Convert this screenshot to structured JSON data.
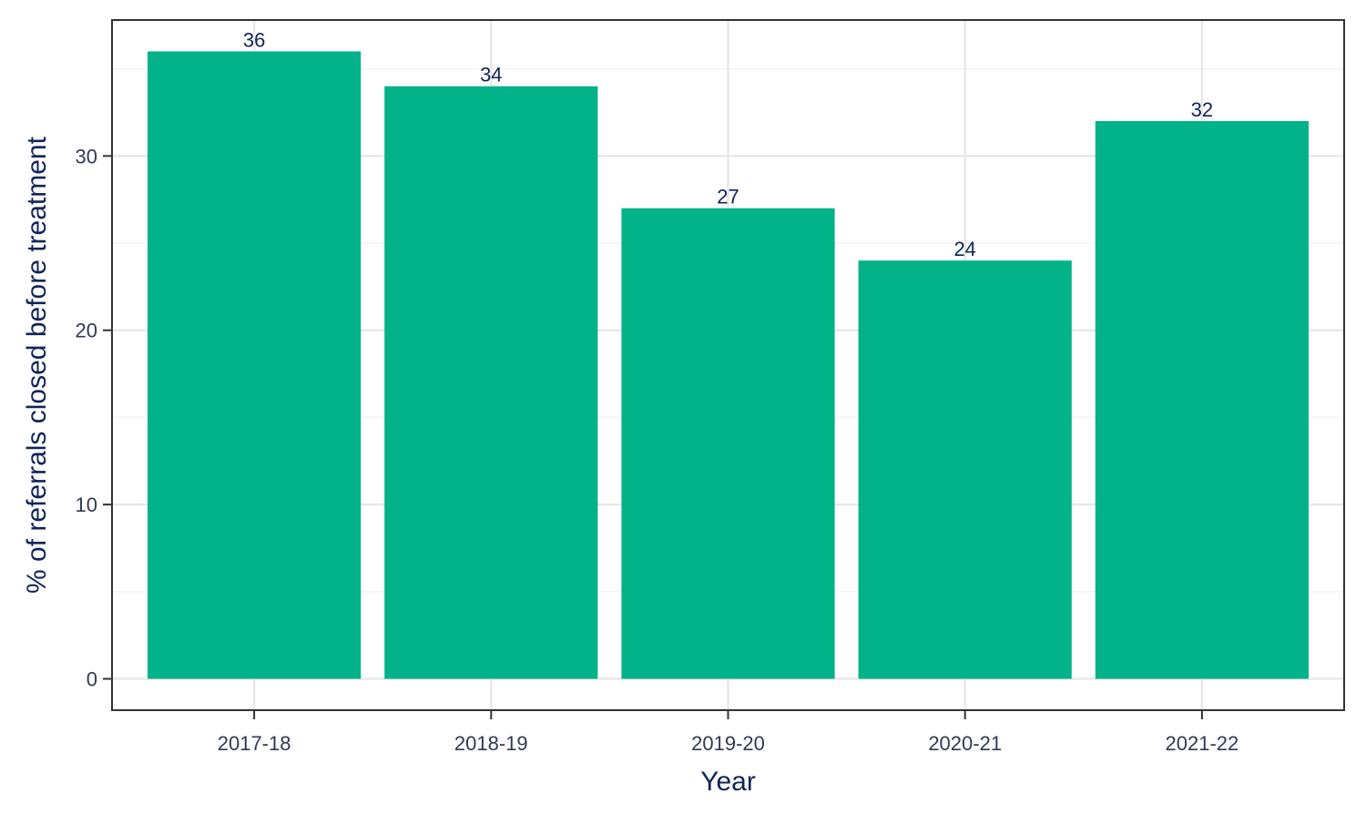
{
  "chart_data": {
    "type": "bar",
    "categories": [
      "2017-18",
      "2018-19",
      "2019-20",
      "2020-21",
      "2021-22"
    ],
    "values": [
      36,
      34,
      27,
      24,
      32
    ],
    "data_labels": [
      "36",
      "34",
      "27",
      "24",
      "32"
    ],
    "xlabel": "Year",
    "ylabel": "% of referrals closed before treatment",
    "ylim": [
      -1.8,
      37.8
    ],
    "yticks": [
      0,
      10,
      20,
      30
    ],
    "ytick_labels": [
      "0",
      "10",
      "20",
      "30"
    ],
    "grid": true,
    "legend": "none"
  },
  "colors": {
    "bar": "#02b288",
    "text": "#102558",
    "tick_text": "#303a55",
    "panel_border": "#333333",
    "grid_major": "#e8e8e8",
    "grid_minor": "#f2f2f2"
  }
}
